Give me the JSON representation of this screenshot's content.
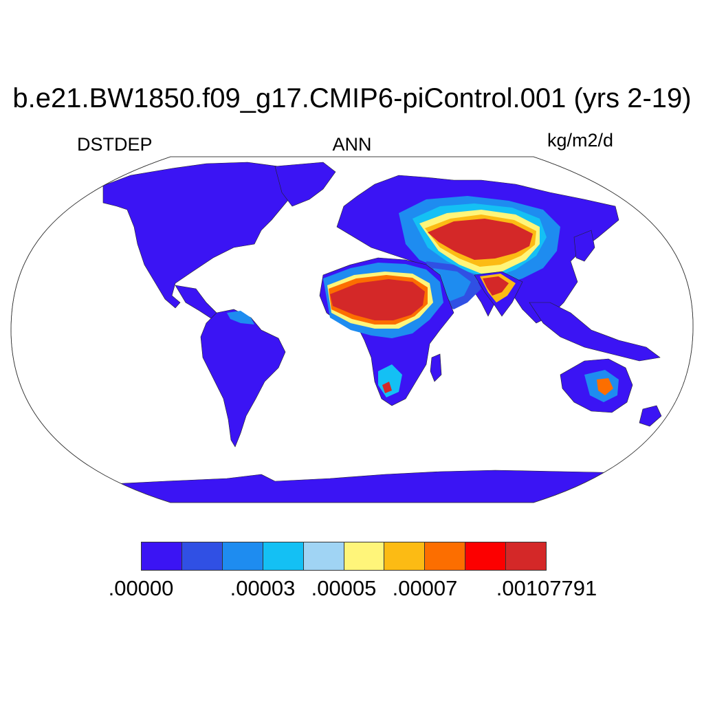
{
  "title": "b.e21.BW1850.f09_g17.CMIP6-piControl.001 (yrs 2-19)",
  "left_label": "DSTDEP",
  "center_label": "ANN",
  "right_label": "kg/m2/d",
  "colorbar": {
    "colors": [
      "#3b14f4",
      "#3050e4",
      "#1e8cf0",
      "#14c0f4",
      "#a0d4f4",
      "#fff57a",
      "#fcbb14",
      "#fc6e00",
      "#fc0000",
      "#d42828"
    ],
    "tick_labels": [
      ".00000",
      ".00003",
      ".00005",
      ".00007",
      ".00107791"
    ]
  }
}
